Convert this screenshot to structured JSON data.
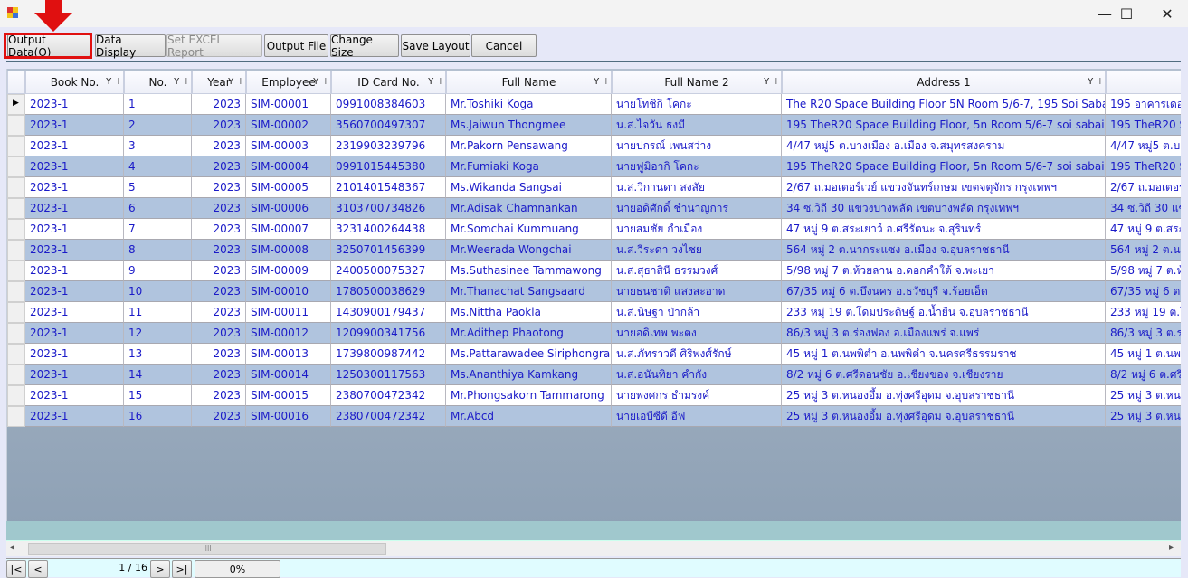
{
  "window": {
    "icon": "app-icon",
    "minimize": "—",
    "maximize": "☐",
    "close": "✕"
  },
  "toolbar": {
    "buttons": [
      {
        "label": "Output Data(O)",
        "enabled": true,
        "highlighted": true
      },
      {
        "label": "Data Display",
        "enabled": true
      },
      {
        "label": "Set EXCEL Report",
        "enabled": false
      },
      {
        "label": "Output File",
        "enabled": true
      },
      {
        "label": "Change Size",
        "enabled": true
      },
      {
        "label": "Save Layout",
        "enabled": true
      },
      {
        "label": "Cancel",
        "enabled": true
      }
    ]
  },
  "annotation": {
    "color": "#e01010",
    "icon": "red-arrow-down"
  },
  "grid": {
    "columns": [
      "Book No.",
      "No.",
      "Year",
      "Employee",
      "ID Card No.",
      "Full Name",
      "Full Name 2",
      "Address 1",
      ""
    ],
    "filter_icon": "Y⊣",
    "row_colors": {
      "odd": "#ffffff",
      "even": "#b0c4de",
      "text": "#1a1ac8"
    },
    "rows": [
      [
        "2023-1",
        "1",
        "2023",
        "SIM-00001",
        "0991008384603",
        "Mr.Toshiki Koga",
        "นายโทชิกิ โคกะ",
        "The R20 Space Building Floor 5N Room 5/6-7, 195 Soi Sabai Ch",
        "195 อาคารเดอะ"
      ],
      [
        "2023-1",
        "2",
        "2023",
        "SIM-00002",
        "3560700497307",
        "Ms.Jaiwun Thongmee",
        "น.ส.ไจวัน ธงมี",
        "195 TheR20 Space Building Floor, 5n Room 5/6-7 soi sabai chai",
        "195 TheR20 Sp"
      ],
      [
        "2023-1",
        "3",
        "2023",
        "SIM-00003",
        "2319903239796",
        "Mr.Pakorn Pensawang",
        "นายปกรณ์ เพนสว่าง",
        "4/47 หมู่5 ต.บางเมือง อ.เมือง จ.สมุทรสงคราม",
        "4/47 หมู่5 ต.บา"
      ],
      [
        "2023-1",
        "4",
        "2023",
        "SIM-00004",
        "0991015445380",
        "Mr.Fumiaki Koga",
        "นายฟูมิอากิ โคกะ",
        "195 TheR20 Space Building Floor, 5n Room 5/6-7 soi sabai chai",
        "195 TheR20 Sp"
      ],
      [
        "2023-1",
        "5",
        "2023",
        "SIM-00005",
        "2101401548367",
        "Ms.Wikanda Sangsai",
        "น.ส.วิกานดา สงสัย",
        "2/67 ถ.มอเตอร์เวย์ แขวงจันทร์เกษม เขตจตุจักร กรุงเทพฯ",
        "2/67 ถ.มอเตอร"
      ],
      [
        "2023-1",
        "6",
        "2023",
        "SIM-00006",
        "3103700734826",
        "Mr.Adisak Chamnankan",
        "นายอดิศักดิ์ ชำนาญการ",
        "34 ซ.วิถี 30 แขวงบางพลัด เขตบางพลัด กรุงเทพฯ",
        "34 ซ.วิถี 30 แข"
      ],
      [
        "2023-1",
        "7",
        "2023",
        "SIM-00007",
        "3231400264438",
        "Mr.Somchai Kummuang",
        "นายสมชัย กำเมือง",
        "47 หมู่ 9 ต.สระเยาว์ อ.ศรีรัตนะ จ.สุรินทร์",
        "47 หมู่ 9 ต.สระ"
      ],
      [
        "2023-1",
        "8",
        "2023",
        "SIM-00008",
        "3250701456399",
        "Mr.Weerada Wongchai",
        "น.ส.วีระดา วงไชย",
        "564 หมู่ 2 ต.นากระแซง อ.เมือง  จ.อุบลราชธานี",
        "564 หมู่ 2 ต.นา"
      ],
      [
        "2023-1",
        "9",
        "2023",
        "SIM-00009",
        "2400500075327",
        "Ms.Suthasinee Tammawong",
        "น.ส.สุธาสินี ธรรมวงศ์",
        "5/98 หมู่ 7 ต.ห้วยลาน อ.ดอกคำใต้ จ.พะเยา",
        "5/98 หมู่ 7 ต.ห้"
      ],
      [
        "2023-1",
        "10",
        "2023",
        "SIM-00010",
        "1780500038629",
        "Mr.Thanachat Sangsaard",
        "นายธนชาติ แสงสะอาด",
        "67/35  หมู่ 6 ต.บึงนคร อ.ธวัชบุรี จ.ร้อยเอ็ด",
        "67/35  หมู่ 6 ต"
      ],
      [
        "2023-1",
        "11",
        "2023",
        "SIM-00011",
        "1430900179437",
        "Ms.Nittha Paokla",
        "น.ส.นิษฐา ป่ากล้า",
        "233 หมู่ 19 ต.โดมประดิษฐ์ อ.น้ำยืน จ.อุบลราชธานี",
        "233 หมู่ 19 ต.โ"
      ],
      [
        "2023-1",
        "12",
        "2023",
        "SIM-00012",
        "1209900341756",
        "Mr.Adithep Phaotong",
        "นายอดิเทพ พะตง",
        "86/3 หมู่ 3 ต.ร่องฟอง อ.เมืองแพร่ จ.แพร่",
        "86/3 หมู่ 3 ต.ร่"
      ],
      [
        "2023-1",
        "13",
        "2023",
        "SIM-00013",
        "1739800987442",
        "Ms.Pattarawadee Siriphongrak",
        "น.ส.ภัทราวดี ศิริพงศ์รักษ์",
        "45 หมู่ 1 ต.นพพิตำ อ.นพพิตำ จ.นครศรีธรรมราช",
        "45 หมู่ 1 ต.นพ"
      ],
      [
        "2023-1",
        "14",
        "2023",
        "SIM-00014",
        "1250300117563",
        "Ms.Ananthiya Kamkang",
        "น.ส.อนันทิยา คำกัง",
        "8/2 หมู่ 6 ต.ศรีดอนชัย  อ.เชียงของ จ.เชียงราย",
        "8/2 หมู่ 6 ต.ศรี"
      ],
      [
        "2023-1",
        "15",
        "2023",
        "SIM-00015",
        "2380700472342",
        "Mr.Phongsakorn Tammarong",
        "นายพงศกร ธำมรงค์",
        "25 หมู่ 3 ต.หนองอึ้ม อ.ทุ่งศรีอุดม จ.อุบลราชธานี",
        "25 หมู่ 3 ต.หนอ"
      ],
      [
        "2023-1",
        "16",
        "2023",
        "SIM-00016",
        "2380700472342",
        "Mr.Abcd",
        "นายเอบีซีดี อีฟ",
        "25 หมู่ 3 ต.หนองอึ้ม อ.ทุ่งศรีอุดม จ.อุบลราชธานี",
        "25 หมู่ 3 ต.หนอ"
      ]
    ],
    "current_row_marker": "▶"
  },
  "hscroll": {
    "grip": "IIII",
    "left_arrow": "◂",
    "right_arrow": "▸"
  },
  "pager": {
    "first": "|<",
    "prev": "<",
    "page": "1 / 16",
    "next": ">",
    "last": ">|",
    "progress_text": "0%",
    "progress": 0
  }
}
